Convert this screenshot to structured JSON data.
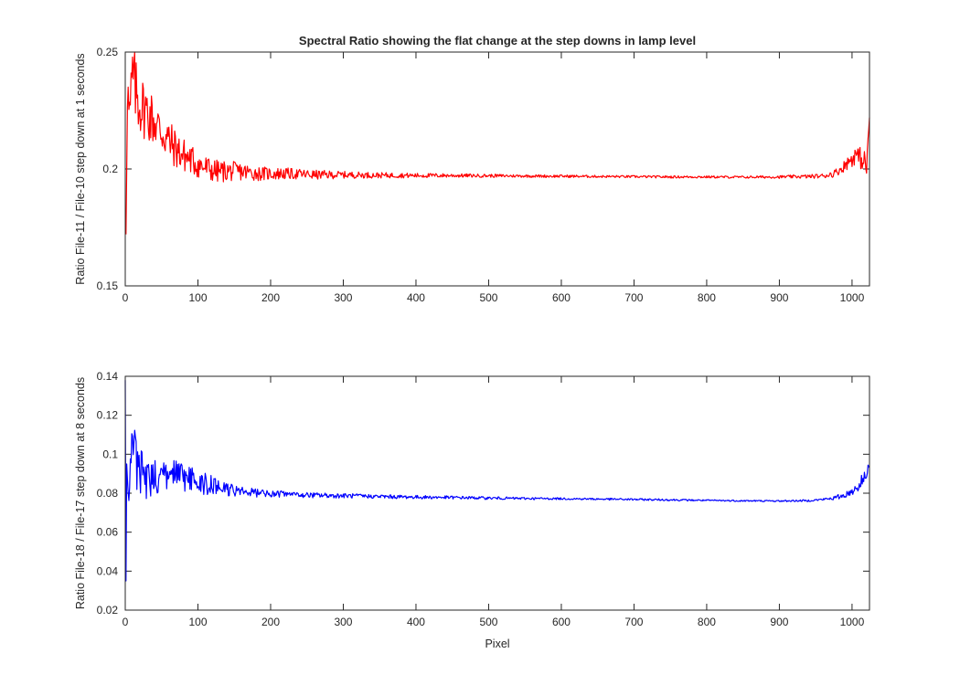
{
  "window": {
    "background": "#ffffff"
  },
  "chart_data": [
    {
      "type": "line",
      "title": "Spectral Ratio showing the flat change at the step downs in lamp level",
      "xlabel": "",
      "ylabel": "Ratio File-11 / File-10 step down at 1 seconds",
      "xlim": [
        0,
        1024
      ],
      "ylim": [
        0.15,
        0.25
      ],
      "xticks": [
        0,
        100,
        200,
        300,
        400,
        500,
        600,
        700,
        800,
        900,
        1000
      ],
      "yticks": [
        0.15,
        0.2,
        0.25
      ],
      "ytick_labels": [
        "0.15",
        "0.2",
        "0.25"
      ],
      "grid": false,
      "series": [
        {
          "color": "#ff0000",
          "x": [
            1,
            3,
            6,
            10,
            15,
            20,
            28,
            36,
            45,
            55,
            65,
            75,
            85,
            95,
            105,
            115,
            125,
            140,
            155,
            170,
            185,
            200,
            220,
            240,
            260,
            280,
            300,
            350,
            400,
            450,
            500,
            550,
            600,
            650,
            700,
            750,
            800,
            850,
            900,
            940,
            960,
            975,
            985,
            995,
            1005,
            1015,
            1020,
            1024
          ],
          "y": [
            0.172,
            0.235,
            0.22,
            0.24,
            0.232,
            0.228,
            0.225,
            0.222,
            0.218,
            0.214,
            0.21,
            0.207,
            0.205,
            0.203,
            0.201,
            0.2,
            0.199,
            0.199,
            0.199,
            0.1985,
            0.198,
            0.198,
            0.198,
            0.1978,
            0.1975,
            0.1975,
            0.1975,
            0.1973,
            0.1972,
            0.1972,
            0.1971,
            0.197,
            0.1969,
            0.1968,
            0.1967,
            0.1966,
            0.1966,
            0.1965,
            0.1966,
            0.1968,
            0.197,
            0.198,
            0.2,
            0.203,
            0.206,
            0.204,
            0.201,
            0.222
          ],
          "noise": [
            0.0,
            0.012,
            0.015,
            0.016,
            0.016,
            0.014,
            0.013,
            0.012,
            0.011,
            0.01,
            0.009,
            0.008,
            0.007,
            0.0065,
            0.006,
            0.0055,
            0.005,
            0.0045,
            0.004,
            0.0035,
            0.003,
            0.0028,
            0.0025,
            0.0022,
            0.002,
            0.0018,
            0.0015,
            0.0012,
            0.001,
            0.0008,
            0.0007,
            0.0006,
            0.0006,
            0.0005,
            0.0005,
            0.0005,
            0.0005,
            0.0005,
            0.0006,
            0.0008,
            0.001,
            0.0015,
            0.002,
            0.003,
            0.004,
            0.005,
            0.006,
            0.0
          ]
        }
      ]
    },
    {
      "type": "line",
      "title": "",
      "xlabel": "Pixel",
      "ylabel": "Ratio File-18 / File-17 step down at 8 seconds",
      "xlim": [
        0,
        1024
      ],
      "ylim": [
        0.02,
        0.14
      ],
      "xticks": [
        0,
        100,
        200,
        300,
        400,
        500,
        600,
        700,
        800,
        900,
        1000
      ],
      "yticks": [
        0.02,
        0.04,
        0.06,
        0.08,
        0.1,
        0.12,
        0.14
      ],
      "ytick_labels": [
        "0.02",
        "0.04",
        "0.06",
        "0.08",
        "0.1",
        "0.12",
        "0.14"
      ],
      "grid": false,
      "series": [
        {
          "color": "#0000ff",
          "x": [
            0,
            1,
            2,
            4,
            8,
            12,
            16,
            20,
            30,
            40,
            50,
            60,
            70,
            80,
            90,
            100,
            110,
            120,
            130,
            140,
            155,
            170,
            185,
            200,
            220,
            250,
            300,
            350,
            400,
            450,
            500,
            550,
            600,
            650,
            700,
            750,
            800,
            850,
            900,
            940,
            960,
            975,
            990,
            1000,
            1010,
            1018,
            1022,
            1024
          ],
          "y": [
            0.138,
            0.035,
            0.095,
            0.075,
            0.11,
            0.1,
            0.095,
            0.09,
            0.088,
            0.088,
            0.089,
            0.09,
            0.089,
            0.088,
            0.087,
            0.086,
            0.085,
            0.084,
            0.083,
            0.082,
            0.081,
            0.0805,
            0.08,
            0.0798,
            0.0795,
            0.079,
            0.0787,
            0.0783,
            0.078,
            0.0778,
            0.0775,
            0.0773,
            0.0772,
            0.077,
            0.0768,
            0.0766,
            0.0763,
            0.0761,
            0.076,
            0.0762,
            0.0768,
            0.0775,
            0.079,
            0.081,
            0.084,
            0.089,
            0.094,
            0.093
          ],
          "noise": [
            0.0,
            0.0,
            0.0,
            0.01,
            0.018,
            0.018,
            0.015,
            0.013,
            0.011,
            0.01,
            0.01,
            0.009,
            0.008,
            0.0075,
            0.007,
            0.0065,
            0.006,
            0.005,
            0.004,
            0.0035,
            0.003,
            0.0025,
            0.002,
            0.0018,
            0.0016,
            0.0014,
            0.0012,
            0.001,
            0.0009,
            0.0008,
            0.0007,
            0.0006,
            0.0005,
            0.0005,
            0.0005,
            0.0005,
            0.0004,
            0.0004,
            0.0004,
            0.0005,
            0.0006,
            0.001,
            0.0015,
            0.002,
            0.003,
            0.004,
            0.003,
            0.0
          ]
        }
      ]
    }
  ]
}
